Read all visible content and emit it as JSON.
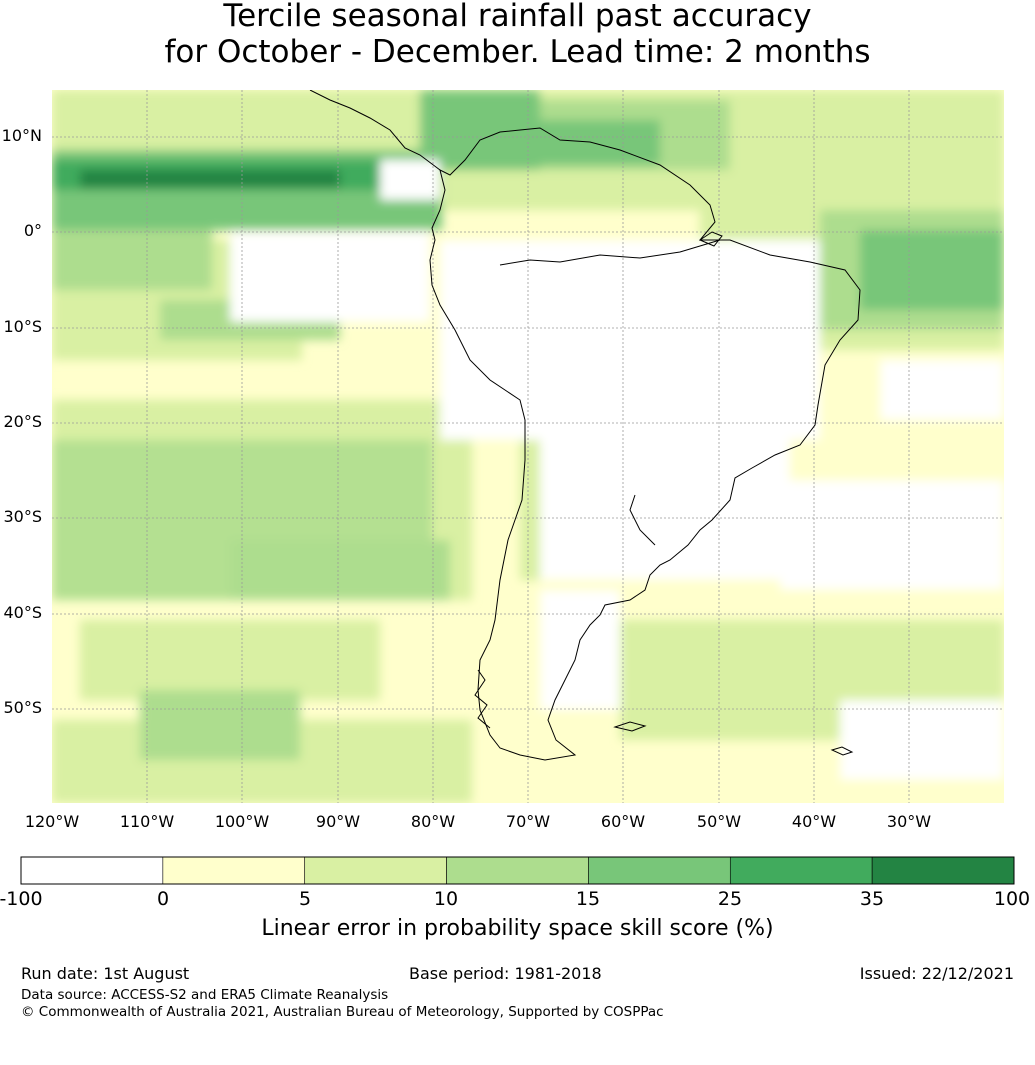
{
  "title": {
    "line1": "Tercile seasonal rainfall past accuracy",
    "line2": "for October - December. Lead time: 2 months"
  },
  "map": {
    "lat_labels": [
      "10°N",
      "0°",
      "10°S",
      "20°S",
      "30°S",
      "40°S",
      "50°S"
    ],
    "lon_labels": [
      "120°W",
      "110°W",
      "100°W",
      "90°W",
      "80°W",
      "70°W",
      "60°W",
      "50°W",
      "40°W",
      "30°W"
    ],
    "coastline_color": "#000000",
    "gridline_color": "#999999"
  },
  "colorbar": {
    "ticks": [
      "-100",
      "0",
      "5",
      "10",
      "15",
      "25",
      "35",
      "100"
    ],
    "colors": [
      "#ffffff",
      "#ffffcc",
      "#d9f0a3",
      "#addd8e",
      "#78c679",
      "#41ab5d",
      "#238443"
    ],
    "label": "Linear error in probability space skill score (%)"
  },
  "footer": {
    "run_date": "Run date: 1st August",
    "base_period": "Base period: 1981-2018",
    "issued": "Issued: 22/12/2021",
    "data_source": "Data source: ACCESS-S2 and ERA5 Climate Reanalysis",
    "copyright": "© Commonwealth of Australia 2021, Australian Bureau of Meteorology, Supported by COSPPac"
  }
}
